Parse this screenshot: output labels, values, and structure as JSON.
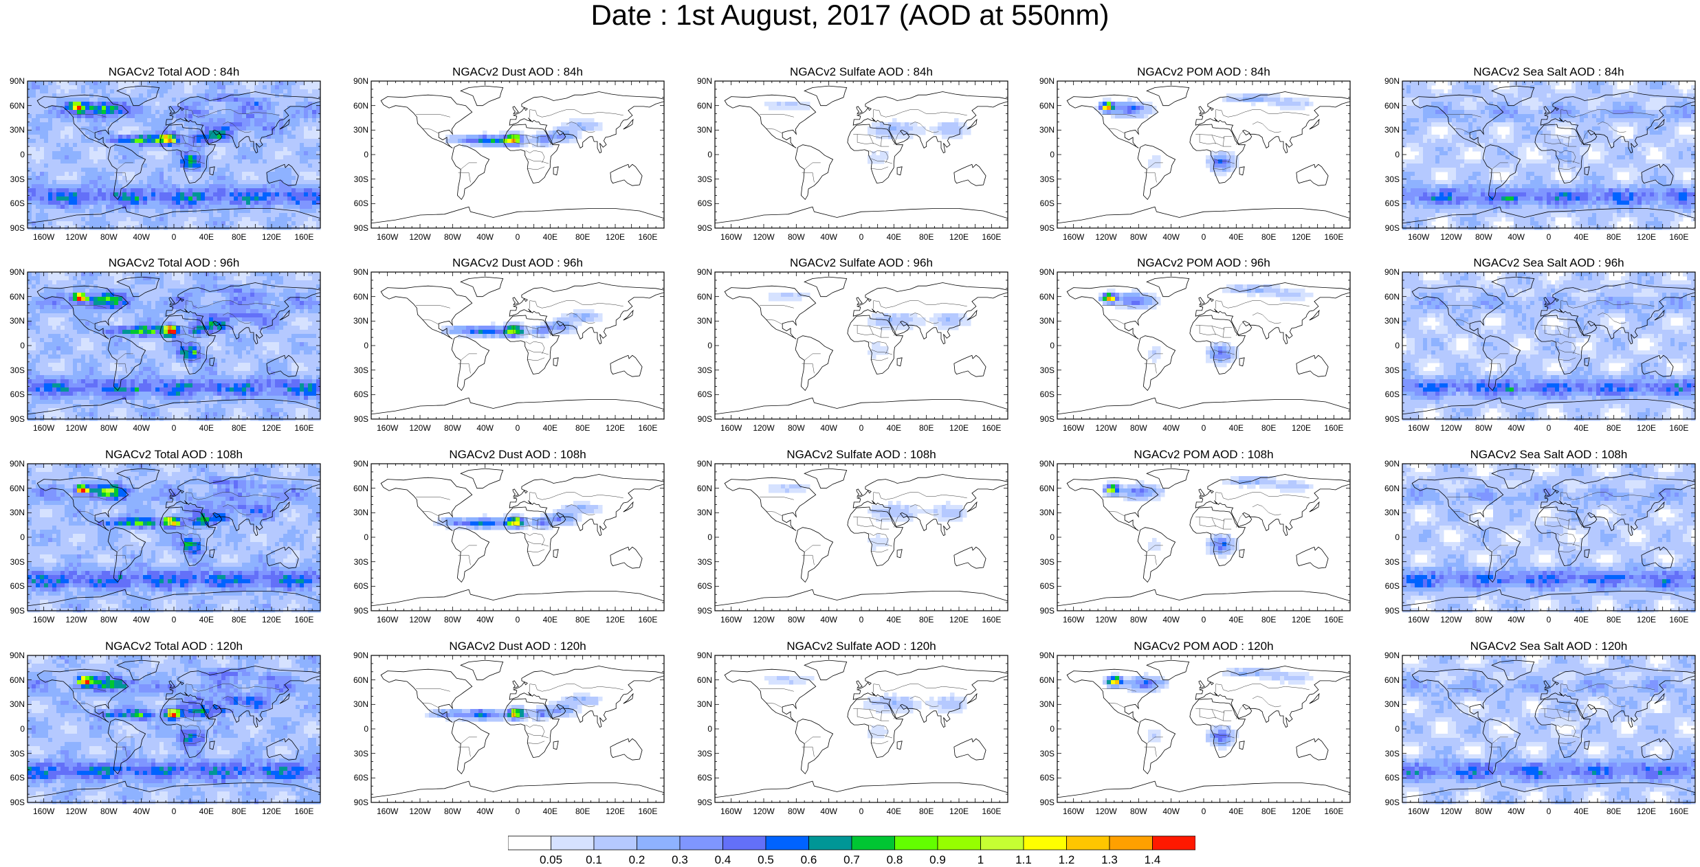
{
  "title": "Date : 1st August, 2017 (AOD at 550nm)",
  "columns": [
    {
      "key": "total",
      "titles": [
        "NGACv2 Total AOD : 84h",
        "NGACv2 Total AOD : 96h",
        "NGACv2 Total AOD : 108h",
        "NGACv2 Total AOD : 120h"
      ]
    },
    {
      "key": "dust",
      "titles": [
        "NGACv2 Dust AOD : 84h",
        "NGACv2 Dust AOD : 96h",
        "NGACv2 Dust AOD : 108h",
        "NGACv2 Dust AOD : 120h"
      ]
    },
    {
      "key": "sulfate",
      "titles": [
        "NGACv2 Sulfate AOD : 84h",
        "NGACv2 Sulfate AOD : 96h",
        "NGACv2 Sulfate AOD : 108h",
        "NGACv2 Sulfate AOD : 120h"
      ]
    },
    {
      "key": "pom",
      "titles": [
        "NGACv2 POM AOD : 84h",
        "NGACv2 POM AOD : 96h",
        "NGACv2 POM AOD : 108h",
        "NGACv2 POM AOD : 120h"
      ]
    },
    {
      "key": "seasalt",
      "titles": [
        "NGACv2 Sea Salt AOD : 84h",
        "NGACv2 Sea Salt AOD : 96h",
        "NGACv2 Sea Salt AOD : 108h",
        "NGACv2 Sea Salt  AOD : 120h"
      ]
    }
  ],
  "lat_labels": [
    "90N",
    "60N",
    "30N",
    "0",
    "30S",
    "60S",
    "90S"
  ],
  "lon_labels": [
    "160W",
    "120W",
    "80W",
    "40W",
    "0",
    "40E",
    "80E",
    "120E",
    "160E"
  ],
  "colorbar": {
    "labels": [
      "0.05",
      "0.1",
      "0.2",
      "0.3",
      "0.4",
      "0.5",
      "0.6",
      "0.7",
      "0.8",
      "0.9",
      "1",
      "1.1",
      "1.2",
      "1.3",
      "1.4"
    ],
    "colors": [
      "#ffffff",
      "#d6e2ff",
      "#b5c9ff",
      "#8eb2ff",
      "#7f96ff",
      "#6370f8",
      "#0063ff",
      "#009696",
      "#00c633",
      "#63ff00",
      "#96ff00",
      "#c6ff33",
      "#ffff00",
      "#ffc600",
      "#ffa000",
      "#ff7c00",
      "#ff1900"
    ]
  }
}
